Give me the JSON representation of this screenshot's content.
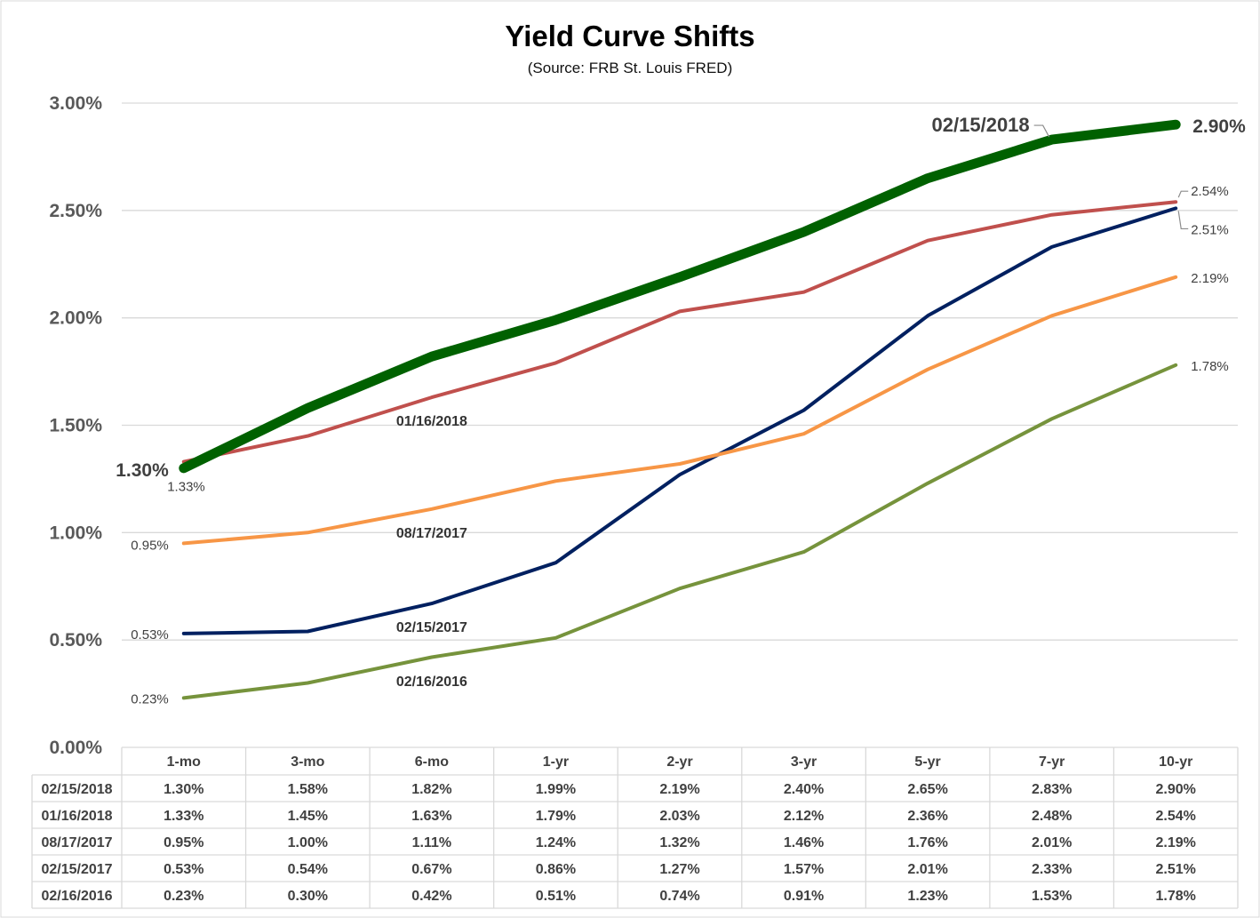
{
  "chart_data": {
    "type": "line",
    "title": "Yield Curve Shifts",
    "subtitle": "(Source: FRB St. Louis FRED)",
    "categories": [
      "1-mo",
      "3-mo",
      "6-mo",
      "1-yr",
      "2-yr",
      "3-yr",
      "5-yr",
      "7-yr",
      "10-yr"
    ],
    "yticks": [
      "0.00%",
      "0.50%",
      "1.00%",
      "1.50%",
      "2.00%",
      "2.50%",
      "3.00%"
    ],
    "ylim": [
      0,
      3.0
    ],
    "grid": true,
    "legend": "data table below chart",
    "series": [
      {
        "name": "02/15/2018",
        "color": "#006100",
        "emphasis": true,
        "values": [
          1.3,
          1.58,
          1.82,
          1.99,
          2.19,
          2.4,
          2.65,
          2.83,
          2.9
        ],
        "cells": [
          "1.30%",
          "1.58%",
          "1.82%",
          "1.99%",
          "2.19%",
          "2.40%",
          "2.65%",
          "2.83%",
          "2.90%"
        ],
        "start_label": "1.30%",
        "end_label": "2.90%"
      },
      {
        "name": "01/16/2018",
        "color": "#c0504d",
        "values": [
          1.33,
          1.45,
          1.63,
          1.79,
          2.03,
          2.12,
          2.36,
          2.48,
          2.54
        ],
        "cells": [
          "1.33%",
          "1.45%",
          "1.63%",
          "1.79%",
          "2.03%",
          "2.12%",
          "2.36%",
          "2.48%",
          "2.54%"
        ],
        "start_label": "1.33%",
        "end_label": "2.54%"
      },
      {
        "name": "08/17/2017",
        "color": "#f79646",
        "values": [
          0.95,
          1.0,
          1.11,
          1.24,
          1.32,
          1.46,
          1.76,
          2.01,
          2.19
        ],
        "cells": [
          "0.95%",
          "1.00%",
          "1.11%",
          "1.24%",
          "1.32%",
          "1.46%",
          "1.76%",
          "2.01%",
          "2.19%"
        ],
        "start_label": "0.95%",
        "end_label": "2.19%"
      },
      {
        "name": "02/15/2017",
        "color": "#002060",
        "values": [
          0.53,
          0.54,
          0.67,
          0.86,
          1.27,
          1.57,
          2.01,
          2.33,
          2.51
        ],
        "cells": [
          "0.53%",
          "0.54%",
          "0.67%",
          "0.86%",
          "1.27%",
          "1.57%",
          "2.01%",
          "2.33%",
          "2.51%"
        ],
        "start_label": "0.53%",
        "end_label": "2.51%"
      },
      {
        "name": "02/16/2016",
        "color": "#76933c",
        "values": [
          0.23,
          0.3,
          0.42,
          0.51,
          0.74,
          0.91,
          1.23,
          1.53,
          1.78
        ],
        "cells": [
          "0.23%",
          "0.30%",
          "0.42%",
          "0.51%",
          "0.74%",
          "0.91%",
          "1.23%",
          "1.53%",
          "1.78%"
        ],
        "start_label": "0.23%",
        "end_label": "1.78%"
      }
    ]
  }
}
